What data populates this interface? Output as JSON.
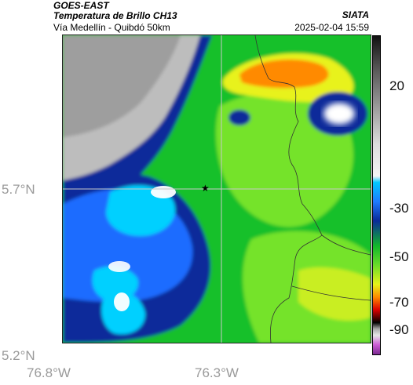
{
  "header": {
    "satellite": "GOES-EAST",
    "product": "Temperatura de Brillo CH13",
    "organization": "SIATA",
    "route": "Vía Medellín - Quibdó 50km",
    "datetime": "2025-02-04 15:59"
  },
  "map": {
    "lat_ticks": [
      "5.7°N",
      "5.2°N"
    ],
    "lon_ticks": [
      "76.8°W",
      "76.3°W"
    ],
    "marker": "star",
    "colors": {
      "cold_gray": "#bdbdbd",
      "light_blue": "#00d0ff",
      "blue": "#1e6cff",
      "dark_blue": "#0a2a9a",
      "green": "#16c02c",
      "light_green": "#74e32a",
      "yellow": "#e8f21a",
      "orange": "#ff8a00",
      "border_line": "#333333",
      "grid_line": "#c8c8c8"
    }
  },
  "colorbar": {
    "ticks": [
      "20",
      "-30",
      "-50",
      "-70",
      "-90"
    ]
  }
}
